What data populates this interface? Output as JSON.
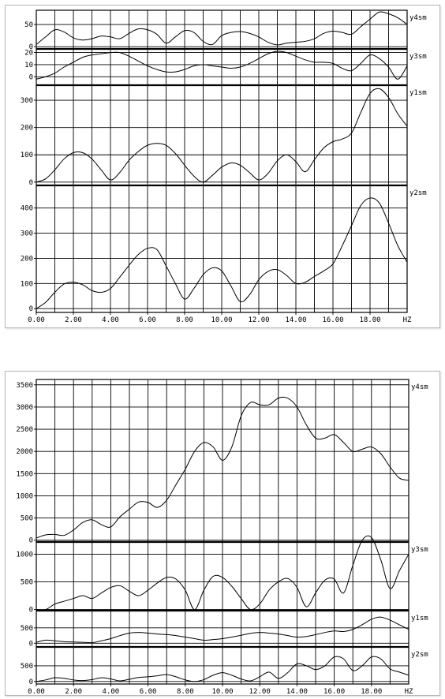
{
  "chart_data": [
    {
      "type": "line",
      "x_label": "HZ",
      "x_ticks": [
        "0.00",
        "2.00",
        "4.00",
        "6.00",
        "8.00",
        "10.00",
        "12.00",
        "14.00",
        "16.00",
        "18.00"
      ],
      "x_range": [
        0,
        20
      ],
      "grid": true,
      "panels": [
        {
          "name": "y4sm",
          "ylim": [
            -5,
            82
          ],
          "yticks": [
            {
              "v": 50,
              "label": "50"
            },
            {
              "v": 0,
              "label": "0"
            }
          ],
          "x": [
            0,
            0.5,
            1,
            1.5,
            2,
            2.5,
            3,
            3.5,
            4,
            4.5,
            5,
            5.5,
            6,
            6.5,
            7,
            7.5,
            8,
            8.5,
            9,
            9.5,
            10,
            10.5,
            11,
            11.5,
            12,
            12.5,
            13,
            13.5,
            14,
            14.5,
            15,
            15.5,
            16,
            16.5,
            17,
            17.5,
            18,
            18.5,
            19,
            19.5,
            20
          ],
          "values": [
            5,
            22,
            38,
            33,
            20,
            15,
            18,
            24,
            22,
            18,
            30,
            40,
            38,
            28,
            8,
            22,
            36,
            32,
            12,
            5,
            25,
            32,
            34,
            30,
            22,
            10,
            4,
            8,
            10,
            12,
            18,
            30,
            35,
            32,
            28,
            45,
            62,
            78,
            74,
            65,
            50
          ]
        },
        {
          "name": "y3sm",
          "ylim": [
            -7,
            23
          ],
          "yticks": [
            {
              "v": 20,
              "label": "20"
            },
            {
              "v": 10,
              "label": "10"
            },
            {
              "v": 0,
              "label": "0"
            }
          ],
          "x": [
            0,
            0.5,
            1,
            1.5,
            2,
            2.5,
            3,
            3.5,
            4,
            4.5,
            5,
            5.5,
            6,
            6.5,
            7,
            7.5,
            8,
            8.5,
            9,
            9.5,
            10,
            10.5,
            11,
            11.5,
            12,
            12.5,
            13,
            13.5,
            14,
            14.5,
            15,
            15.5,
            16,
            16.5,
            17,
            17.5,
            18,
            18.5,
            19,
            19.5,
            20
          ],
          "values": [
            -2,
            0,
            3,
            8,
            12,
            16,
            18,
            19,
            20,
            20,
            17,
            13,
            9,
            6,
            4,
            4,
            6,
            9,
            10,
            9,
            8,
            7,
            8,
            11,
            15,
            19,
            21,
            20,
            17,
            14,
            12,
            12,
            11,
            7,
            5,
            11,
            18,
            15,
            8,
            -2,
            9
          ]
        },
        {
          "name": "y1sm",
          "ylim": [
            -12,
            355
          ],
          "yticks": [
            {
              "v": 300,
              "label": "300"
            },
            {
              "v": 200,
              "label": "200"
            },
            {
              "v": 100,
              "label": "100"
            },
            {
              "v": 0,
              "label": "0"
            }
          ],
          "x": [
            0,
            0.5,
            1,
            1.5,
            2,
            2.5,
            3,
            3.5,
            4,
            4.5,
            5,
            5.5,
            6,
            6.5,
            7,
            7.5,
            8,
            8.5,
            9,
            9.5,
            10,
            10.5,
            11,
            11.5,
            12,
            12.5,
            13,
            13.5,
            14,
            14.5,
            15,
            15.5,
            16,
            16.5,
            17,
            17.5,
            18,
            18.5,
            19,
            19.5,
            20
          ],
          "values": [
            0,
            12,
            45,
            85,
            108,
            108,
            85,
            45,
            8,
            35,
            80,
            112,
            135,
            142,
            135,
            105,
            62,
            22,
            0,
            25,
            55,
            70,
            62,
            35,
            8,
            32,
            78,
            100,
            75,
            38,
            82,
            125,
            148,
            158,
            180,
            255,
            325,
            342,
            310,
            250,
            205
          ]
        },
        {
          "name": "y2sm",
          "ylim": [
            -15,
            490
          ],
          "yticks": [
            {
              "v": 400,
              "label": "400"
            },
            {
              "v": 300,
              "label": "300"
            },
            {
              "v": 200,
              "label": "200"
            },
            {
              "v": 100,
              "label": "100"
            },
            {
              "v": 0,
              "label": "0"
            }
          ],
          "x": [
            0,
            0.5,
            1,
            1.5,
            2,
            2.5,
            3,
            3.5,
            4,
            4.5,
            5,
            5.5,
            6,
            6.5,
            7,
            7.5,
            8,
            8.5,
            9,
            9.5,
            10,
            10.5,
            11,
            11.5,
            12,
            12.5,
            13,
            13.5,
            14,
            14.5,
            15,
            15.5,
            16,
            16.5,
            17,
            17.5,
            18,
            18.5,
            19,
            19.5,
            20
          ],
          "values": [
            0,
            25,
            65,
            98,
            105,
            95,
            72,
            65,
            80,
            125,
            172,
            215,
            240,
            235,
            170,
            100,
            38,
            80,
            135,
            162,
            150,
            90,
            28,
            55,
            115,
            148,
            155,
            132,
            100,
            105,
            128,
            150,
            178,
            250,
            330,
            410,
            440,
            420,
            340,
            250,
            185
          ]
        }
      ]
    },
    {
      "type": "line",
      "x_label": "HZ",
      "x_ticks": [
        "0.00",
        "2.00",
        "4.00",
        "6.00",
        "8.00",
        "10.00",
        "12.00",
        "14.00",
        "16.00",
        "18.00"
      ],
      "x_range": [
        0,
        20
      ],
      "grid": true,
      "panels": [
        {
          "name": "y4sm",
          "ylim": [
            -40,
            3620
          ],
          "yticks": [
            {
              "v": 3500,
              "label": "3500"
            },
            {
              "v": 3000,
              "label": "3000"
            },
            {
              "v": 2500,
              "label": "2500"
            },
            {
              "v": 2000,
              "label": "2000"
            },
            {
              "v": 1500,
              "label": "1500"
            },
            {
              "v": 1000,
              "label": "1000"
            },
            {
              "v": 500,
              "label": "500"
            },
            {
              "v": 0,
              "label": "0"
            }
          ],
          "x": [
            0,
            0.5,
            1,
            1.5,
            2,
            2.5,
            3,
            3.5,
            4,
            4.5,
            5,
            5.5,
            6,
            6.5,
            7,
            7.5,
            8,
            8.5,
            9,
            9.5,
            10,
            10.5,
            11,
            11.5,
            12,
            12.5,
            13,
            13.5,
            14,
            14.5,
            15,
            15.5,
            16,
            16.5,
            17,
            17.5,
            18,
            18.5,
            19,
            19.5,
            20
          ],
          "values": [
            50,
            120,
            130,
            110,
            230,
            400,
            460,
            350,
            300,
            530,
            700,
            860,
            850,
            740,
            900,
            1250,
            1600,
            2000,
            2200,
            2100,
            1800,
            2100,
            2800,
            3100,
            3050,
            3050,
            3200,
            3200,
            3000,
            2600,
            2300,
            2300,
            2380,
            2200,
            2000,
            2050,
            2100,
            1950,
            1650,
            1400,
            1350
          ]
        },
        {
          "name": "y3sm",
          "ylim": [
            -20,
            1220
          ],
          "yticks": [
            {
              "v": 1000,
              "label": "1000"
            },
            {
              "v": 500,
              "label": "500"
            },
            {
              "v": 0,
              "label": "0"
            }
          ],
          "x": [
            0,
            0.5,
            1,
            1.5,
            2,
            2.5,
            3,
            3.5,
            4,
            4.5,
            5,
            5.5,
            6,
            6.5,
            7,
            7.5,
            8,
            8.5,
            9,
            9.5,
            10,
            10.5,
            11,
            11.5,
            12,
            12.5,
            13,
            13.5,
            14,
            14.5,
            15,
            15.5,
            16,
            16.5,
            17,
            17.5,
            18,
            18.5,
            19,
            19.5,
            20
          ],
          "values": [
            0,
            0,
            100,
            150,
            200,
            250,
            200,
            300,
            400,
            430,
            330,
            250,
            350,
            480,
            580,
            550,
            350,
            0,
            350,
            600,
            580,
            420,
            200,
            0,
            100,
            350,
            500,
            560,
            400,
            50,
            300,
            530,
            550,
            300,
            800,
            1250,
            1300,
            900,
            380,
            700,
            1000
          ]
        },
        {
          "name": "y1sm",
          "ylim": [
            -120,
            1060
          ],
          "yticks": [
            {
              "v": 500,
              "label": "500"
            },
            {
              "v": 0,
              "label": "0"
            }
          ],
          "x": [
            0,
            0.5,
            1,
            1.5,
            2,
            2.5,
            3,
            3.5,
            4,
            4.5,
            5,
            5.5,
            6,
            6.5,
            7,
            7.5,
            8,
            8.5,
            9,
            9.5,
            10,
            10.5,
            11,
            11.5,
            12,
            12.5,
            13,
            13.5,
            14,
            14.5,
            15,
            15.5,
            16,
            16.5,
            17,
            17.5,
            18,
            18.5,
            19,
            19.5,
            20
          ],
          "values": [
            30,
            100,
            80,
            50,
            40,
            30,
            20,
            80,
            150,
            250,
            330,
            350,
            330,
            300,
            280,
            250,
            200,
            150,
            100,
            120,
            150,
            200,
            260,
            320,
            350,
            330,
            300,
            250,
            200,
            220,
            280,
            350,
            400,
            380,
            450,
            600,
            780,
            850,
            750,
            600,
            450
          ]
        },
        {
          "name": "y2sm",
          "ylim": [
            -80,
            1100
          ],
          "yticks": [
            {
              "v": 500,
              "label": "500"
            },
            {
              "v": 0,
              "label": "0"
            }
          ],
          "x": [
            0,
            0.5,
            1,
            1.5,
            2,
            2.5,
            3,
            3.5,
            4,
            4.5,
            5,
            5.5,
            6,
            6.5,
            7,
            7.5,
            8,
            8.5,
            9,
            9.5,
            10,
            10.5,
            11,
            11.5,
            12,
            12.5,
            13,
            13.5,
            14,
            14.5,
            15,
            15.5,
            16,
            16.5,
            17,
            17.5,
            18,
            18.5,
            19,
            19.5,
            20
          ],
          "values": [
            0,
            50,
            120,
            100,
            50,
            30,
            60,
            120,
            80,
            20,
            70,
            130,
            150,
            180,
            220,
            150,
            50,
            0,
            60,
            200,
            280,
            200,
            80,
            20,
            150,
            300,
            100,
            280,
            560,
            500,
            380,
            500,
            780,
            720,
            350,
            500,
            780,
            720,
            400,
            300,
            200
          ]
        }
      ]
    }
  ]
}
